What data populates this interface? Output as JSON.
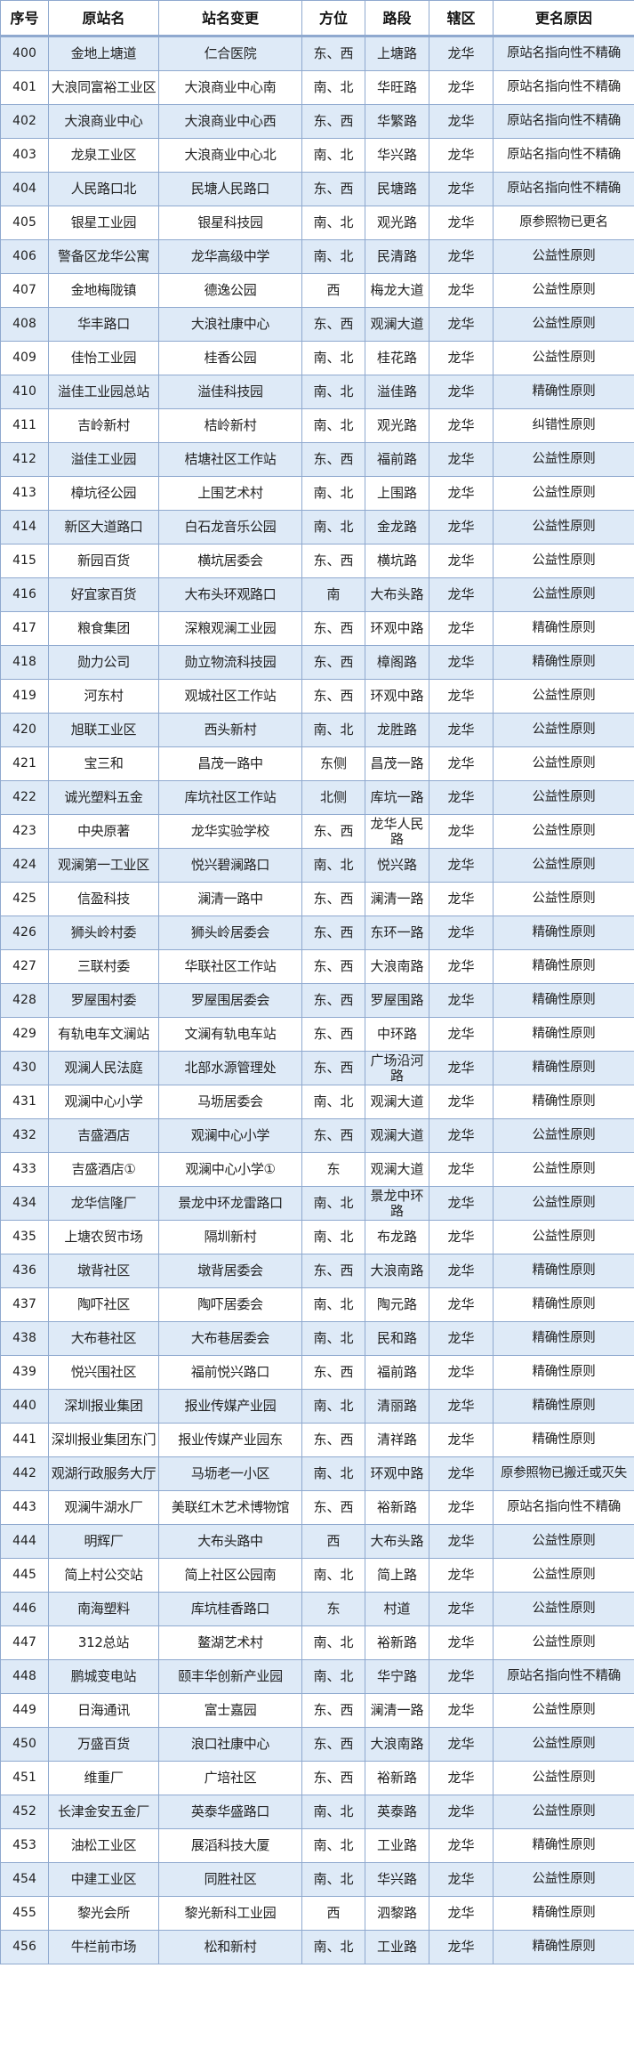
{
  "headers": [
    "序号",
    "原站名",
    "站名变更",
    "方位",
    "路段",
    "辖区",
    "更名原因"
  ],
  "colors": {
    "row_alt": "#deeaf7",
    "border": "#8fa9cf"
  },
  "rows": [
    [
      "400",
      "金地上塘道",
      "仁合医院",
      "东、西",
      "上塘路",
      "龙华",
      "原站名指向性不精确"
    ],
    [
      "401",
      "大浪同富裕工业区",
      "大浪商业中心南",
      "南、北",
      "华旺路",
      "龙华",
      "原站名指向性不精确"
    ],
    [
      "402",
      "大浪商业中心",
      "大浪商业中心西",
      "东、西",
      "华繁路",
      "龙华",
      "原站名指向性不精确"
    ],
    [
      "403",
      "龙泉工业区",
      "大浪商业中心北",
      "南、北",
      "华兴路",
      "龙华",
      "原站名指向性不精确"
    ],
    [
      "404",
      "人民路口北",
      "民塘人民路口",
      "东、西",
      "民塘路",
      "龙华",
      "原站名指向性不精确"
    ],
    [
      "405",
      "银星工业园",
      "银星科技园",
      "南、北",
      "观光路",
      "龙华",
      "原参照物已更名"
    ],
    [
      "406",
      "警备区龙华公寓",
      "龙华高级中学",
      "南、北",
      "民清路",
      "龙华",
      "公益性原则"
    ],
    [
      "407",
      "金地梅陇镇",
      "德逸公园",
      "西",
      "梅龙大道",
      "龙华",
      "公益性原则"
    ],
    [
      "408",
      "华丰路口",
      "大浪社康中心",
      "东、西",
      "观澜大道",
      "龙华",
      "公益性原则"
    ],
    [
      "409",
      "佳怡工业园",
      "桂香公园",
      "南、北",
      "桂花路",
      "龙华",
      "公益性原则"
    ],
    [
      "410",
      "溢佳工业园总站",
      "溢佳科技园",
      "南、北",
      "溢佳路",
      "龙华",
      "精确性原则"
    ],
    [
      "411",
      "吉岭新村",
      "桔岭新村",
      "南、北",
      "观光路",
      "龙华",
      "纠错性原则"
    ],
    [
      "412",
      "溢佳工业园",
      "桔塘社区工作站",
      "东、西",
      "福前路",
      "龙华",
      "公益性原则"
    ],
    [
      "413",
      "樟坑径公园",
      "上围艺术村",
      "南、北",
      "上围路",
      "龙华",
      "公益性原则"
    ],
    [
      "414",
      "新区大道路口",
      "白石龙音乐公园",
      "南、北",
      "金龙路",
      "龙华",
      "公益性原则"
    ],
    [
      "415",
      "新园百货",
      "横坑居委会",
      "东、西",
      "横坑路",
      "龙华",
      "公益性原则"
    ],
    [
      "416",
      "好宜家百货",
      "大布头环观路口",
      "南",
      "大布头路",
      "龙华",
      "公益性原则"
    ],
    [
      "417",
      "粮食集团",
      "深粮观澜工业园",
      "东、西",
      "环观中路",
      "龙华",
      "精确性原则"
    ],
    [
      "418",
      "勋力公司",
      "勋立物流科技园",
      "东、西",
      "樟阁路",
      "龙华",
      "精确性原则"
    ],
    [
      "419",
      "河东村",
      "观城社区工作站",
      "东、西",
      "环观中路",
      "龙华",
      "公益性原则"
    ],
    [
      "420",
      "旭联工业区",
      "西头新村",
      "南、北",
      "龙胜路",
      "龙华",
      "公益性原则"
    ],
    [
      "421",
      "宝三和",
      "昌茂一路中",
      "东侧",
      "昌茂一路",
      "龙华",
      "公益性原则"
    ],
    [
      "422",
      "诚光塑料五金",
      "库坑社区工作站",
      "北侧",
      "库坑一路",
      "龙华",
      "公益性原则"
    ],
    [
      "423",
      "中央原著",
      "龙华实验学校",
      "东、西",
      "龙华人民路",
      "龙华",
      "公益性原则"
    ],
    [
      "424",
      "观澜第一工业区",
      "悦兴碧澜路口",
      "南、北",
      "悦兴路",
      "龙华",
      "公益性原则"
    ],
    [
      "425",
      "信盈科技",
      "澜清一路中",
      "东、西",
      "澜清一路",
      "龙华",
      "公益性原则"
    ],
    [
      "426",
      "狮头岭村委",
      "狮头岭居委会",
      "东、西",
      "东环一路",
      "龙华",
      "精确性原则"
    ],
    [
      "427",
      "三联村委",
      "华联社区工作站",
      "东、西",
      "大浪南路",
      "龙华",
      "精确性原则"
    ],
    [
      "428",
      "罗屋围村委",
      "罗屋围居委会",
      "东、西",
      "罗屋围路",
      "龙华",
      "精确性原则"
    ],
    [
      "429",
      "有轨电车文澜站",
      "文澜有轨电车站",
      "东、西",
      "中环路",
      "龙华",
      "精确性原则"
    ],
    [
      "430",
      "观澜人民法庭",
      "北部水源管理处",
      "东、西",
      "广场沿河路",
      "龙华",
      "精确性原则"
    ],
    [
      "431",
      "观澜中心小学",
      "马坜居委会",
      "南、北",
      "观澜大道",
      "龙华",
      "精确性原则"
    ],
    [
      "432",
      "吉盛酒店",
      "观澜中心小学",
      "东、西",
      "观澜大道",
      "龙华",
      "公益性原则"
    ],
    [
      "433",
      "吉盛酒店①",
      "观澜中心小学①",
      "东",
      "观澜大道",
      "龙华",
      "公益性原则"
    ],
    [
      "434",
      "龙华信隆厂",
      "景龙中环龙雷路口",
      "南、北",
      "景龙中环路",
      "龙华",
      "公益性原则"
    ],
    [
      "435",
      "上塘农贸市场",
      "隔圳新村",
      "南、北",
      "布龙路",
      "龙华",
      "公益性原则"
    ],
    [
      "436",
      "墩背社区",
      "墩背居委会",
      "东、西",
      "大浪南路",
      "龙华",
      "精确性原则"
    ],
    [
      "437",
      "陶吓社区",
      "陶吓居委会",
      "南、北",
      "陶元路",
      "龙华",
      "精确性原则"
    ],
    [
      "438",
      "大布巷社区",
      "大布巷居委会",
      "南、北",
      "民和路",
      "龙华",
      "精确性原则"
    ],
    [
      "439",
      "悦兴围社区",
      "福前悦兴路口",
      "东、西",
      "福前路",
      "龙华",
      "精确性原则"
    ],
    [
      "440",
      "深圳报业集团",
      "报业传媒产业园",
      "南、北",
      "清丽路",
      "龙华",
      "精确性原则"
    ],
    [
      "441",
      "深圳报业集团东门",
      "报业传媒产业园东",
      "东、西",
      "清祥路",
      "龙华",
      "精确性原则"
    ],
    [
      "442",
      "观湖行政服务大厅",
      "马坜老一小区",
      "南、北",
      "环观中路",
      "龙华",
      "原参照物已搬迁或灭失"
    ],
    [
      "443",
      "观澜牛湖水厂",
      "美联红木艺术博物馆",
      "东、西",
      "裕新路",
      "龙华",
      "原站名指向性不精确"
    ],
    [
      "444",
      "明辉厂",
      "大布头路中",
      "西",
      "大布头路",
      "龙华",
      "公益性原则"
    ],
    [
      "445",
      "简上村公交站",
      "简上社区公园南",
      "南、北",
      "简上路",
      "龙华",
      "公益性原则"
    ],
    [
      "446",
      "南海塑料",
      "库坑桂香路口",
      "东",
      "村道",
      "龙华",
      "公益性原则"
    ],
    [
      "447",
      "312总站",
      "鳌湖艺术村",
      "南、北",
      "裕新路",
      "龙华",
      "公益性原则"
    ],
    [
      "448",
      "鹏城变电站",
      "颐丰华创新产业园",
      "南、北",
      "华宁路",
      "龙华",
      "原站名指向性不精确"
    ],
    [
      "449",
      "日海通讯",
      "富士嘉园",
      "东、西",
      "澜清一路",
      "龙华",
      "公益性原则"
    ],
    [
      "450",
      "万盛百货",
      "浪口社康中心",
      "东、西",
      "大浪南路",
      "龙华",
      "公益性原则"
    ],
    [
      "451",
      "维重厂",
      "广培社区",
      "东、西",
      "裕新路",
      "龙华",
      "公益性原则"
    ],
    [
      "452",
      "长津金安五金厂",
      "英泰华盛路口",
      "南、北",
      "英泰路",
      "龙华",
      "公益性原则"
    ],
    [
      "453",
      "油松工业区",
      "展滔科技大厦",
      "南、北",
      "工业路",
      "龙华",
      "精确性原则"
    ],
    [
      "454",
      "中建工业区",
      "同胜社区",
      "南、北",
      "华兴路",
      "龙华",
      "公益性原则"
    ],
    [
      "455",
      "黎光会所",
      "黎光新科工业园",
      "西",
      "泗黎路",
      "龙华",
      "精确性原则"
    ],
    [
      "456",
      "牛栏前市场",
      "松和新村",
      "南、北",
      "工业路",
      "龙华",
      "精确性原则"
    ]
  ]
}
